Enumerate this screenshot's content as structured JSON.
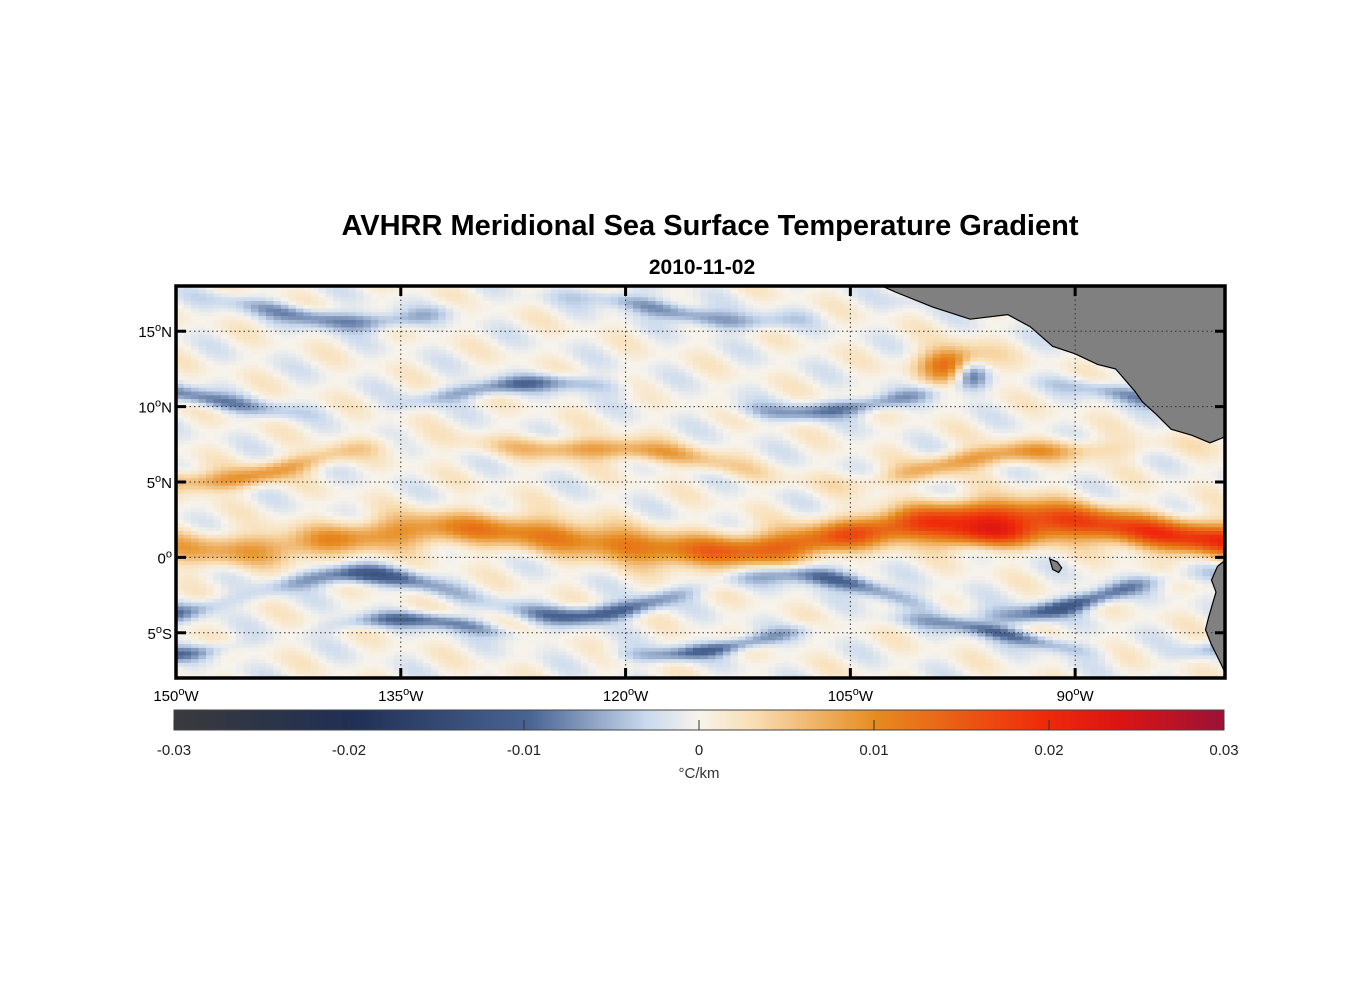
{
  "chart_data": {
    "type": "heatmap",
    "title": "AVHRR Meridional Sea Surface Temperature Gradient",
    "subtitle": "2010-11-02",
    "lon_range": [
      -150,
      -80
    ],
    "lat_range": [
      -8,
      18
    ],
    "x_ticks": [
      {
        "value": -150,
        "label": "150",
        "deg": "o",
        "hemi": "W"
      },
      {
        "value": -135,
        "label": "135",
        "deg": "o",
        "hemi": "W"
      },
      {
        "value": -120,
        "label": "120",
        "deg": "o",
        "hemi": "W"
      },
      {
        "value": -105,
        "label": "105",
        "deg": "o",
        "hemi": "W"
      },
      {
        "value": -90,
        "label": "90",
        "deg": "o",
        "hemi": "W"
      }
    ],
    "y_ticks": [
      {
        "value": 15,
        "label": "15",
        "deg": "o",
        "hemi": "N"
      },
      {
        "value": 10,
        "label": "10",
        "deg": "o",
        "hemi": "N"
      },
      {
        "value": 5,
        "label": "5",
        "deg": "o",
        "hemi": "N"
      },
      {
        "value": 0,
        "label": "0",
        "deg": "o",
        "hemi": ""
      },
      {
        "value": -5,
        "label": "5",
        "deg": "o",
        "hemi": "S"
      }
    ],
    "grid": true,
    "colorbar": {
      "orientation": "horizontal",
      "placement": "bottom",
      "range": [
        -0.03,
        0.03
      ],
      "ticks": [
        -0.03,
        -0.02,
        -0.01,
        0,
        0.01,
        0.02,
        0.03
      ],
      "tick_labels": [
        "-0.03",
        "-0.02",
        "-0.01",
        "0",
        "0.01",
        "0.02",
        "0.03"
      ],
      "units": "°C/km",
      "colors": [
        "#3a3a3c",
        "#1f2f55",
        "#4a6594",
        "#c9d9ee",
        "#f7f3ec",
        "#f9dfb6",
        "#e68a1e",
        "#ef2a0a",
        "#dc1414",
        "#9c1236"
      ]
    },
    "features": {
      "equatorial_front_band": {
        "lat": [
          0,
          3
        ],
        "lon": [
          -150,
          -80
        ],
        "sign": "positive"
      },
      "peak_region": {
        "lat": [
          0.5,
          2.5
        ],
        "lon": [
          -100,
          -92
        ],
        "value": 0.03
      },
      "northern_front": {
        "lat": [
          5,
          8
        ],
        "lon": [
          -148,
          -88
        ],
        "value": 0.012
      },
      "southern_negative_bands": {
        "lat": [
          -6,
          -1
        ],
        "lon": [
          -150,
          -80
        ],
        "value": -0.015
      }
    },
    "land_color": "#808080"
  }
}
